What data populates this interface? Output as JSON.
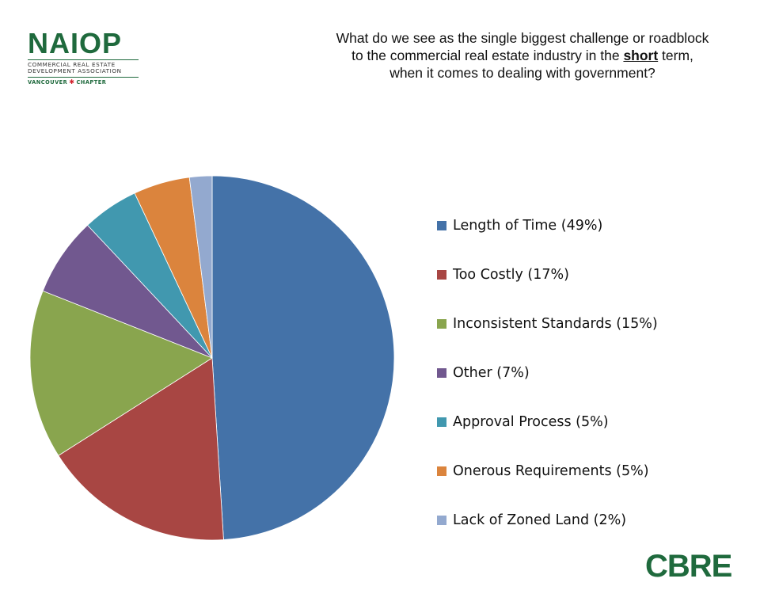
{
  "logo": {
    "name": "NAIOP",
    "subtitle_line1": "COMMERCIAL REAL ESTATE",
    "subtitle_line2": "DEVELOPMENT ASSOCIATION",
    "chapter_left": "VANCOUVER",
    "chapter_right": "CHAPTER",
    "color": "#1f6a3d"
  },
  "title": {
    "line1": "What do we see as the single biggest challenge or roadblock",
    "line2_before": "to the commercial real estate industry in the ",
    "line2_emphasis": "short",
    "line2_after": " term,",
    "line3": "when it comes to dealing with government?"
  },
  "chart_data": {
    "type": "pie",
    "start_angle_deg": 0,
    "direction": "clockwise",
    "slices": [
      {
        "label": "Length of Time (49%)",
        "value": 49,
        "color": "#4472a8"
      },
      {
        "label": "Too Costly (17%)",
        "value": 17,
        "color": "#a84643"
      },
      {
        "label": "Inconsistent Standards (15%)",
        "value": 15,
        "color": "#89a54e"
      },
      {
        "label": "Other (7%)",
        "value": 7,
        "color": "#71588f"
      },
      {
        "label": "Approval Process (5%)",
        "value": 5,
        "color": "#4198af"
      },
      {
        "label": "Onerous Requirements (5%)",
        "value": 5,
        "color": "#db843d"
      },
      {
        "label": "Lack of Zoned Land (2%)",
        "value": 2,
        "color": "#93a9cf"
      }
    ],
    "legend_placement": "right"
  },
  "footer": {
    "brand": "CBRE",
    "color": "#1f6a3d"
  }
}
